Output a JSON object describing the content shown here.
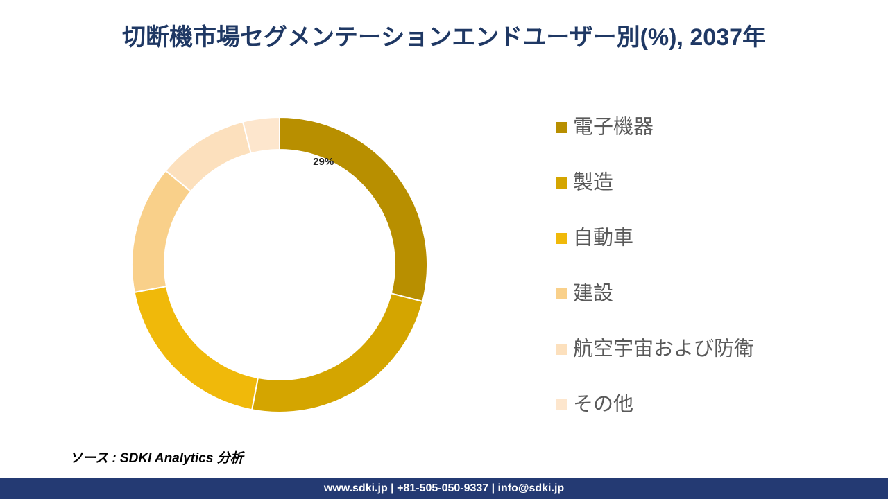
{
  "chart_data": {
    "type": "donut",
    "title": "切断機市場セグメンテーションエンドユーザー別(%), 2037年",
    "categories": [
      "電子機器",
      "製造",
      "自動車",
      "建設",
      "航空宇宙および防衛",
      "その他"
    ],
    "values": [
      29,
      24,
      19,
      14,
      10,
      4
    ],
    "value_labels": [
      "29%",
      null,
      null,
      null,
      null,
      null
    ],
    "colors": [
      "#b88f00",
      "#d4a500",
      "#f0b90a",
      "#f9d08a",
      "#fce0bd",
      "#fde6cd"
    ],
    "legend": "right"
  },
  "source": "ソース : SDKI Analytics 分析",
  "footer": "www.sdki.jp | +81-505-050-9337 | info@sdki.jp"
}
